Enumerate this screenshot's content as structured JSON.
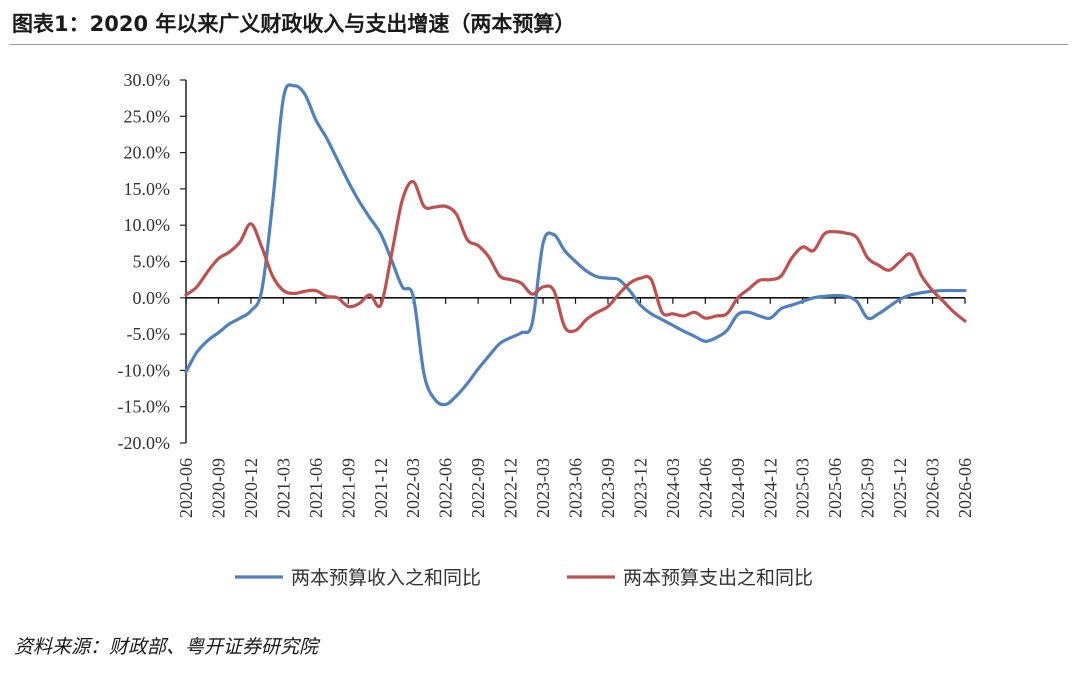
{
  "figure": {
    "title": "图表1：2020 年以来广义财政收入与支出增速（两本预算）",
    "source": "资料来源：财政部、粤开证券研究院"
  },
  "chart_data": {
    "type": "line",
    "ylim": [
      -20,
      30
    ],
    "yticks": [
      "30.0%",
      "25.0%",
      "20.0%",
      "15.0%",
      "10.0%",
      "5.0%",
      "0.0%",
      "-5.0%",
      "-10.0%",
      "-15.0%",
      "-20.0%"
    ],
    "x_tick_labels": [
      "2020-06",
      "2020-09",
      "2020-12",
      "2021-03",
      "2021-06",
      "2021-09",
      "2021-12",
      "2022-03",
      "2022-06",
      "2022-09",
      "2022-12",
      "2023-03",
      "2023-06",
      "2023-09",
      "2023-12",
      "2024-03",
      "2024-06",
      "2024-09",
      "2024-12",
      "2025-03",
      "2025-06",
      "2025-09",
      "2025-12",
      "2026-03",
      "2026-06"
    ],
    "x": [
      "2020-06",
      "2020-07",
      "2020-08",
      "2020-09",
      "2020-10",
      "2020-11",
      "2020-12",
      "2021-01",
      "2021-02",
      "2021-03",
      "2021-04",
      "2021-05",
      "2021-06",
      "2021-07",
      "2021-08",
      "2021-09",
      "2021-10",
      "2021-11",
      "2021-12",
      "2022-01",
      "2022-02",
      "2022-03",
      "2022-04",
      "2022-05",
      "2022-06",
      "2022-07",
      "2022-08",
      "2022-09",
      "2022-10",
      "2022-11",
      "2022-12",
      "2023-01",
      "2023-02",
      "2023-03",
      "2023-04",
      "2023-05",
      "2023-06",
      "2023-07",
      "2023-08",
      "2023-09",
      "2023-10",
      "2023-11",
      "2023-12",
      "2024-01",
      "2024-02",
      "2024-03",
      "2024-04",
      "2024-05",
      "2024-06",
      "2024-07",
      "2024-08",
      "2024-09",
      "2024-10",
      "2024-11",
      "2024-12",
      "2025-01",
      "2025-02",
      "2025-03",
      "2025-04",
      "2025-05",
      "2025-06",
      "2025-07",
      "2025-08",
      "2025-09",
      "2025-10",
      "2025-11",
      "2025-12",
      "2026-01",
      "2026-02",
      "2026-03",
      "2026-04",
      "2026-05",
      "2026-06"
    ],
    "series": [
      {
        "name": "两本预算收入之和同比",
        "color": "#4f81bd",
        "values": [
          -10.2,
          -7.5,
          -5.9,
          -4.8,
          -3.6,
          -2.8,
          -1.8,
          1.0,
          13.0,
          27.5,
          29.2,
          28.0,
          24.5,
          22.0,
          19.0,
          16.0,
          13.3,
          11.0,
          8.8,
          5.2,
          1.5,
          0.2,
          -10.5,
          -14.0,
          -14.7,
          -13.5,
          -11.8,
          -9.8,
          -8.0,
          -6.3,
          -5.5,
          -4.8,
          -3.5,
          7.5,
          8.7,
          6.5,
          5.0,
          3.7,
          2.9,
          2.7,
          2.5,
          1.0,
          -1.0,
          -2.2,
          -3.0,
          -3.8,
          -4.6,
          -5.3,
          -6.0,
          -5.5,
          -4.5,
          -2.3,
          -2.0,
          -2.5,
          -2.8,
          -1.5,
          -1.0,
          -0.5,
          0.0,
          0.2,
          0.3,
          0.2,
          -0.5,
          -2.8,
          -2.2,
          -1.2,
          -0.2,
          0.4,
          0.7,
          0.9,
          1.0,
          1.0,
          1.0
        ]
      },
      {
        "name": "两本预算支出之和同比",
        "color": "#c0504d",
        "values": [
          0.4,
          1.5,
          3.6,
          5.4,
          6.3,
          7.7,
          10.2,
          7.0,
          3.0,
          1.0,
          0.6,
          0.9,
          1.0,
          0.2,
          0.0,
          -1.2,
          -0.8,
          0.4,
          -1.0,
          6.0,
          13.5,
          16.0,
          12.6,
          12.5,
          12.6,
          11.5,
          8.0,
          7.2,
          5.6,
          3.0,
          2.5,
          2.0,
          0.5,
          1.5,
          1.0,
          -4.0,
          -4.5,
          -3.0,
          -2.0,
          -1.2,
          0.5,
          2.0,
          2.7,
          2.5,
          -2.0,
          -2.2,
          -2.5,
          -2.0,
          -2.8,
          -2.5,
          -2.2,
          0.0,
          1.2,
          2.4,
          2.5,
          3.0,
          5.5,
          7.0,
          6.5,
          8.8,
          9.1,
          8.9,
          8.3,
          5.5,
          4.5,
          3.8,
          5.0,
          6.0,
          3.0,
          1.0,
          -0.5,
          -2.0,
          -3.2
        ]
      }
    ],
    "legend_position": "bottom"
  }
}
